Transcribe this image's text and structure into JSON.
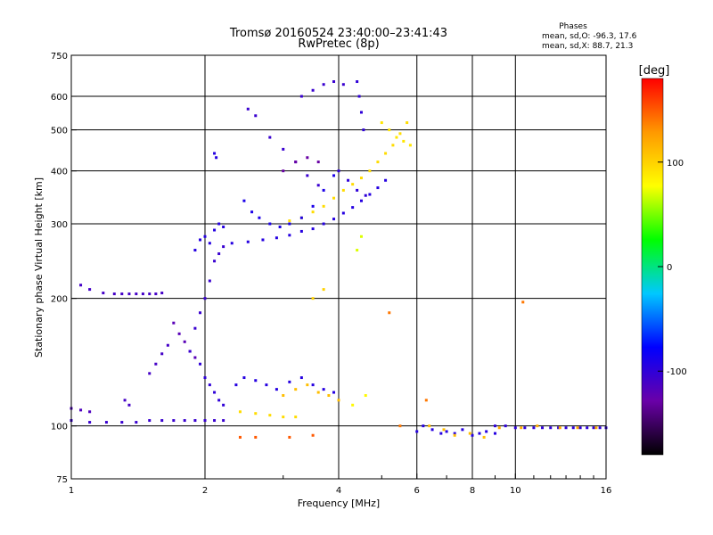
{
  "chart_data": {
    "type": "scatter",
    "title": "Tromsø 20160524 23:40:00–23:41:43",
    "subtitle": "RwPretec (8p)",
    "xlabel": "Frequency [MHz]",
    "ylabel": "Stationary phase Virtual Height [km]",
    "x_scale": "log",
    "y_scale": "log",
    "xlim": [
      1,
      16
    ],
    "ylim": [
      75,
      750
    ],
    "x_ticks": [
      1,
      2,
      4,
      6,
      8,
      10,
      16
    ],
    "x_tick_labels": [
      "1",
      "2",
      "4",
      "6",
      "8",
      "10",
      "16"
    ],
    "y_ticks": [
      75,
      100,
      200,
      300,
      400,
      500,
      600,
      750
    ],
    "y_tick_labels": [
      "75",
      "100",
      "200",
      "300",
      "400",
      "500",
      "600",
      "750"
    ],
    "grid": true,
    "legend_block": {
      "title": "Phases",
      "lines": [
        "mean, sd,O: -96.3, 17.6",
        "mean, sd,X: 88.7, 21.3"
      ]
    },
    "colorbar": {
      "label": "[deg]",
      "range": [
        -180,
        180
      ],
      "ticks": [
        100,
        0,
        -100
      ],
      "tick_labels": [
        "100",
        "0",
        "-100"
      ],
      "colors": [
        "#000000",
        "#6a00a8",
        "#0000ff",
        "#00c8ff",
        "#00ff00",
        "#ffff00",
        "#ff9900",
        "#ff0000"
      ]
    },
    "series": [
      {
        "x": [
          1.0,
          1.1,
          1.2,
          1.3,
          1.4,
          1.5,
          1.6,
          1.7,
          1.8,
          1.9,
          2.0,
          2.1,
          2.2
        ],
        "y": [
          103,
          102,
          102,
          102,
          102,
          103,
          103,
          103,
          103,
          103,
          103,
          103,
          103
        ],
        "phase": -105
      },
      {
        "x": [
          1.0,
          1.05,
          1.1
        ],
        "y": [
          110,
          109,
          108
        ],
        "phase": -115
      },
      {
        "x": [
          1.05,
          1.1
        ],
        "y": [
          215,
          210
        ],
        "phase": -110
      },
      {
        "x": [
          1.18,
          1.25,
          1.3,
          1.35,
          1.4,
          1.45,
          1.5,
          1.55,
          1.6
        ],
        "y": [
          206,
          205,
          205,
          205,
          205,
          205,
          205,
          205,
          206
        ],
        "phase": -110
      },
      {
        "x": [
          1.32,
          1.35
        ],
        "y": [
          115,
          112
        ],
        "phase": -110
      },
      {
        "x": [
          1.5,
          1.55,
          1.6,
          1.65
        ],
        "y": [
          133,
          140,
          148,
          155
        ],
        "phase": -110
      },
      {
        "x": [
          1.7,
          1.75,
          1.8,
          1.85,
          1.9
        ],
        "y": [
          175,
          165,
          158,
          150,
          145
        ],
        "phase": -120
      },
      {
        "x": [
          1.85,
          1.9,
          1.95,
          2.0,
          2.05,
          2.1,
          2.15,
          2.2
        ],
        "y": [
          150,
          170,
          185,
          200,
          220,
          245,
          255,
          265
        ],
        "phase": -105
      },
      {
        "x": [
          1.9,
          1.95,
          2.0,
          2.05,
          2.1,
          2.15,
          2.2
        ],
        "y": [
          260,
          275,
          280,
          270,
          290,
          300,
          295
        ],
        "phase": -95
      },
      {
        "x": [
          1.95,
          2.0,
          2.05,
          2.1,
          2.15,
          2.2
        ],
        "y": [
          140,
          130,
          125,
          120,
          115,
          112
        ],
        "phase": -100
      },
      {
        "x": [
          2.1,
          2.12
        ],
        "y": [
          440,
          430
        ],
        "phase": -95
      },
      {
        "x": [
          2.3,
          2.5,
          2.7,
          2.9,
          3.1,
          3.3,
          3.5,
          3.7,
          3.9,
          4.1,
          4.3,
          4.5,
          4.7,
          4.9,
          5.1
        ],
        "y": [
          270,
          272,
          275,
          278,
          282,
          288,
          292,
          300,
          308,
          318,
          328,
          340,
          352,
          365,
          380
        ],
        "phase": -95
      },
      {
        "x": [
          3.1,
          3.3,
          3.5,
          3.7,
          3.9,
          4.1,
          4.3,
          4.5,
          4.7,
          4.9,
          5.1,
          5.3,
          5.5,
          5.7
        ],
        "y": [
          305,
          310,
          320,
          330,
          345,
          360,
          372,
          385,
          400,
          420,
          440,
          460,
          490,
          520
        ],
        "phase": 95
      },
      {
        "x": [
          2.45,
          2.55,
          2.65,
          2.8,
          2.95,
          3.1,
          3.3,
          3.5,
          3.7,
          3.9
        ],
        "y": [
          340,
          320,
          310,
          300,
          295,
          300,
          310,
          330,
          360,
          390
        ],
        "phase": -90
      },
      {
        "x": [
          2.5,
          2.6,
          2.8,
          3.0,
          3.2,
          3.4,
          3.6
        ],
        "y": [
          560,
          540,
          480,
          450,
          420,
          390,
          370
        ],
        "phase": -105
      },
      {
        "x": [
          3.0,
          3.2,
          3.4,
          3.6
        ],
        "y": [
          400,
          420,
          430,
          420
        ],
        "phase": -130
      },
      {
        "x": [
          3.3,
          3.5,
          3.7,
          3.9,
          4.1
        ],
        "y": [
          600,
          620,
          640,
          650,
          640
        ],
        "phase": -105
      },
      {
        "x": [
          4.4,
          4.45,
          4.5,
          4.55
        ],
        "y": [
          650,
          600,
          550,
          500
        ],
        "phase": -100
      },
      {
        "x": [
          4.0,
          4.2,
          4.4,
          4.6
        ],
        "y": [
          400,
          380,
          360,
          350
        ],
        "phase": -100
      },
      {
        "x": [
          5.0,
          5.2,
          5.4,
          5.6,
          5.8
        ],
        "y": [
          520,
          500,
          480,
          470,
          460
        ],
        "phase": 90
      },
      {
        "x": [
          2.35,
          2.45,
          2.6,
          2.75,
          2.9,
          3.1,
          3.3,
          3.5,
          3.7,
          3.9
        ],
        "y": [
          125,
          130,
          128,
          125,
          122,
          127,
          130,
          125,
          122,
          120
        ],
        "phase": -95
      },
      {
        "x": [
          2.4,
          2.6,
          2.8,
          3.0,
          3.2
        ],
        "y": [
          108,
          107,
          106,
          105,
          105
        ],
        "phase": 95
      },
      {
        "x": [
          3.0,
          3.2,
          3.4,
          3.6,
          3.8,
          4.0
        ],
        "y": [
          118,
          122,
          125,
          120,
          118,
          115
        ],
        "phase": 110
      },
      {
        "x": [
          4.3,
          4.6
        ],
        "y": [
          112,
          118
        ],
        "phase": 80
      },
      {
        "x": [
          2.4,
          2.6,
          3.1,
          3.5
        ],
        "y": [
          94,
          94,
          94,
          95
        ],
        "phase": 150
      },
      {
        "x": [
          3.5,
          3.7
        ],
        "y": [
          200,
          210
        ],
        "phase": 100
      },
      {
        "x": [
          4.4,
          4.5
        ],
        "y": [
          260,
          280
        ],
        "phase": 70
      },
      {
        "x": [
          5.2,
          5.5,
          6.3
        ],
        "y": [
          185,
          100,
          115
        ],
        "phase": 140
      },
      {
        "x": [
          6.0,
          6.2,
          6.5,
          6.8,
          7.0,
          7.3,
          7.6,
          8.0,
          8.3,
          8.6,
          9.0
        ],
        "y": [
          97,
          100,
          98,
          96,
          97,
          96,
          98,
          95,
          96,
          97,
          96
        ],
        "phase": -95
      },
      {
        "x": [
          6.4,
          6.9,
          7.3,
          7.9,
          8.5
        ],
        "y": [
          100,
          98,
          95,
          96,
          94
        ],
        "phase": 110
      },
      {
        "x": [
          9.0,
          9.5,
          10.0,
          10.5,
          11.0,
          11.5,
          12.0,
          12.5,
          13.0,
          13.5,
          14.0,
          14.5,
          15.0,
          15.5,
          16.0
        ],
        "y": [
          100,
          100,
          99,
          99,
          99,
          99,
          99,
          99,
          99,
          99,
          99,
          99,
          99,
          99,
          99
        ],
        "phase": -100
      },
      {
        "x": [
          9.2,
          10.3,
          11.2,
          12.6,
          13.8,
          15.2
        ],
        "y": [
          99,
          99,
          100,
          99,
          99,
          99
        ],
        "phase": 120
      },
      {
        "x": [
          10.4
        ],
        "y": [
          196
        ],
        "phase": 140
      }
    ]
  }
}
